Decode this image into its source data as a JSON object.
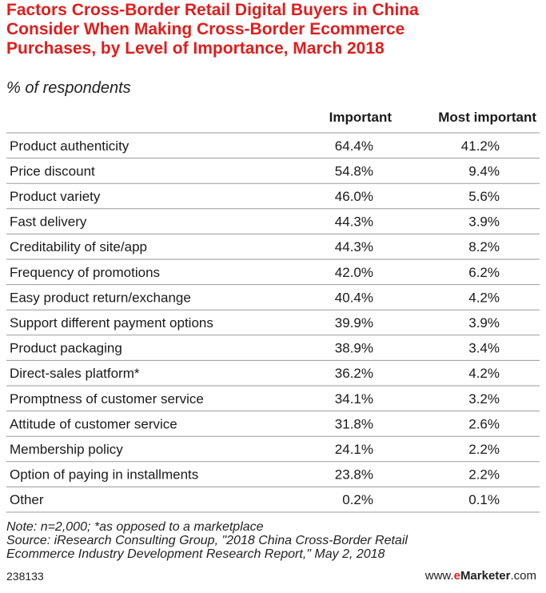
{
  "title": "Factors Cross-Border Retail Digital Buyers in China\nConsider When Making Cross-Border Ecommerce\nPurchases, by Level of Importance, March 2018",
  "subtitle": "% of respondents",
  "colors": {
    "title": "#e31c1c",
    "rule": "#9a9a9a",
    "text": "#1a1a1a"
  },
  "chart_data": {
    "type": "table",
    "columns": [
      "",
      "Important",
      "Most important"
    ],
    "rows": [
      {
        "label": "Product authenticity",
        "important": 64.4,
        "most_important": 41.2
      },
      {
        "label": "Price discount",
        "important": 54.8,
        "most_important": 9.4
      },
      {
        "label": "Product variety",
        "important": 46.0,
        "most_important": 5.6
      },
      {
        "label": "Fast delivery",
        "important": 44.3,
        "most_important": 3.9
      },
      {
        "label": "Creditability of site/app",
        "important": 44.3,
        "most_important": 8.2
      },
      {
        "label": "Frequency of promotions",
        "important": 42.0,
        "most_important": 6.2
      },
      {
        "label": "Easy product return/exchange",
        "important": 40.4,
        "most_important": 4.2
      },
      {
        "label": "Support different payment options",
        "important": 39.9,
        "most_important": 3.9
      },
      {
        "label": "Product packaging",
        "important": 38.9,
        "most_important": 3.4
      },
      {
        "label": "Direct-sales platform*",
        "important": 36.2,
        "most_important": 4.2
      },
      {
        "label": "Promptness of customer service",
        "important": 34.1,
        "most_important": 3.2
      },
      {
        "label": "Attitude of customer service",
        "important": 31.8,
        "most_important": 2.6
      },
      {
        "label": "Membership policy",
        "important": 24.1,
        "most_important": 2.2
      },
      {
        "label": "Option of paying in installments",
        "important": 23.8,
        "most_important": 2.2
      },
      {
        "label": "Other",
        "important": 0.2,
        "most_important": 0.1
      }
    ]
  },
  "notes": {
    "note": "Note: n=2,000; *as opposed to a marketplace",
    "source_line1": "Source: iResearch Consulting Group, \"2018 China Cross-Border Retail",
    "source_line2": "Ecommerce Industry Development Research Report,\" May 2, 2018"
  },
  "footer": {
    "chart_id": "238133",
    "brand_prefix": "www.",
    "brand_e": "e",
    "brand_name": "Marketer",
    "brand_suffix": ".com"
  }
}
